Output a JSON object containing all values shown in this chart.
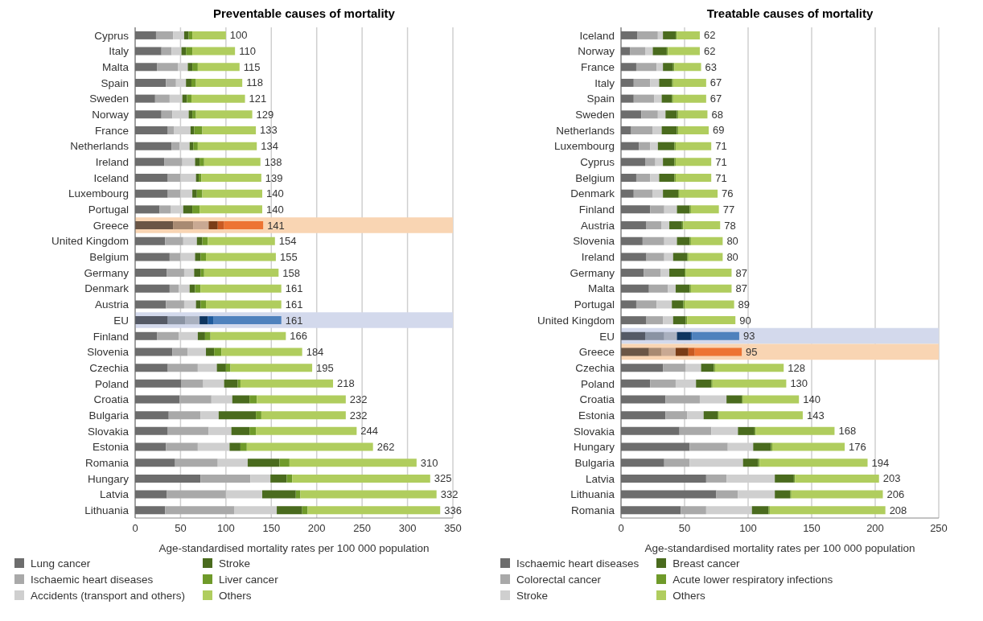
{
  "chart_data": [
    {
      "type": "bar",
      "orientation": "horizontal",
      "stacked": true,
      "title": "Preventable causes of mortality",
      "xlabel": "Age-standardised mortality rates per 100 000 population",
      "categories": [
        "Cyprus",
        "Italy",
        "Malta",
        "Spain",
        "Sweden",
        "Norway",
        "France",
        "Netherlands",
        "Ireland",
        "Iceland",
        "Luxembourg",
        "Portugal",
        "Greece",
        "United Kingdom",
        "Belgium",
        "Germany",
        "Denmark",
        "Austria",
        "EU",
        "Finland",
        "Slovenia",
        "Czechia",
        "Poland",
        "Croatia",
        "Bulgaria",
        "Slovakia",
        "Estonia",
        "Romania",
        "Hungary",
        "Latvia",
        "Lithuania"
      ],
      "series": [
        {
          "name": "Lung cancer",
          "color": "#6d6d6d",
          "values": [
            23,
            29,
            24,
            34,
            22,
            29,
            36,
            40,
            32,
            36,
            36,
            27,
            42,
            33,
            38,
            35,
            38,
            34,
            36,
            24,
            41,
            36,
            51,
            49,
            37,
            36,
            34,
            44,
            72,
            35,
            33
          ],
          "colors": [
            "#6d6d6d",
            "#6d6d6d",
            "#6d6d6d",
            "#6d6d6d",
            "#6d6d6d",
            "#6d6d6d",
            "#6d6d6d",
            "#6d6d6d",
            "#6d6d6d",
            "#6d6d6d",
            "#6d6d6d",
            "#6d6d6d",
            "#6b5646",
            "#6d6d6d",
            "#6d6d6d",
            "#6d6d6d",
            "#6d6d6d",
            "#6d6d6d",
            "#555a66",
            "#6d6d6d",
            "#6d6d6d",
            "#6d6d6d",
            "#6d6d6d",
            "#6d6d6d",
            "#6d6d6d",
            "#6d6d6d",
            "#6d6d6d",
            "#6d6d6d",
            "#6d6d6d",
            "#6d6d6d",
            "#6d6d6d"
          ]
        },
        {
          "name": "Ischaemic heart diseases",
          "color": "#a9a9a9",
          "values": [
            19,
            11,
            23,
            11,
            16,
            12,
            7,
            9,
            20,
            14,
            14,
            12,
            22,
            20,
            12,
            19,
            10,
            20,
            19,
            24,
            17,
            33,
            24,
            35,
            35,
            45,
            35,
            47,
            55,
            65,
            76
          ],
          "colors": [
            "#a9a9a9",
            "#a9a9a9",
            "#a9a9a9",
            "#a9a9a9",
            "#a9a9a9",
            "#a9a9a9",
            "#a9a9a9",
            "#a9a9a9",
            "#a9a9a9",
            "#a9a9a9",
            "#a9a9a9",
            "#a9a9a9",
            "#a88a72",
            "#a9a9a9",
            "#a9a9a9",
            "#a9a9a9",
            "#a9a9a9",
            "#a9a9a9",
            "#8a93a3",
            "#a9a9a9",
            "#a9a9a9",
            "#a9a9a9",
            "#a9a9a9",
            "#a9a9a9",
            "#a9a9a9",
            "#a9a9a9",
            "#a9a9a9",
            "#a9a9a9",
            "#a9a9a9",
            "#a9a9a9",
            "#a9a9a9"
          ]
        },
        {
          "name": "Accidents (transport and others)",
          "color": "#cfcfcf",
          "values": [
            12,
            11,
            11,
            11,
            14,
            18,
            18,
            11,
            14,
            17,
            13,
            14,
            17,
            15,
            16,
            11,
            12,
            13,
            16,
            21,
            20,
            21,
            23,
            23,
            20,
            25,
            35,
            33,
            22,
            40,
            47
          ],
          "colors": [
            "#cfcfcf",
            "#cfcfcf",
            "#cfcfcf",
            "#cfcfcf",
            "#cfcfcf",
            "#cfcfcf",
            "#cfcfcf",
            "#cfcfcf",
            "#cfcfcf",
            "#cfcfcf",
            "#cfcfcf",
            "#cfcfcf",
            "#c9a993",
            "#cfcfcf",
            "#cfcfcf",
            "#cfcfcf",
            "#cfcfcf",
            "#cfcfcf",
            "#a9b0bf",
            "#cfcfcf",
            "#cfcfcf",
            "#cfcfcf",
            "#cfcfcf",
            "#cfcfcf",
            "#cfcfcf",
            "#cfcfcf",
            "#cfcfcf",
            "#cfcfcf",
            "#cfcfcf",
            "#cfcfcf",
            "#cfcfcf"
          ]
        },
        {
          "name": "Stroke",
          "color": "#4a6b1e",
          "values": [
            5,
            5,
            5,
            6,
            5,
            4,
            4,
            4,
            5,
            3,
            5,
            10,
            10,
            6,
            6,
            7,
            6,
            5,
            9,
            8,
            9,
            10,
            15,
            19,
            41,
            20,
            12,
            35,
            18,
            37,
            28
          ],
          "colors": [
            "#4a6b1e",
            "#4a6b1e",
            "#4a6b1e",
            "#4a6b1e",
            "#4a6b1e",
            "#4a6b1e",
            "#4a6b1e",
            "#4a6b1e",
            "#4a6b1e",
            "#4a6b1e",
            "#4a6b1e",
            "#4a6b1e",
            "#7a3d17",
            "#4a6b1e",
            "#4a6b1e",
            "#4a6b1e",
            "#4a6b1e",
            "#4a6b1e",
            "#0e3560",
            "#4a6b1e",
            "#4a6b1e",
            "#4a6b1e",
            "#4a6b1e",
            "#4a6b1e",
            "#4a6b1e",
            "#4a6b1e",
            "#4a6b1e",
            "#4a6b1e",
            "#4a6b1e",
            "#4a6b1e",
            "#4a6b1e"
          ]
        },
        {
          "name": "Liver cancer",
          "color": "#6f9a2a",
          "values": [
            4,
            7,
            6,
            5,
            5,
            4,
            9,
            5,
            5,
            3,
            6,
            8,
            7,
            6,
            6,
            4,
            6,
            6,
            6,
            6,
            8,
            5,
            3,
            8,
            6,
            7,
            7,
            11,
            6,
            5,
            6
          ],
          "colors": [
            "#6f9a2a",
            "#6f9a2a",
            "#6f9a2a",
            "#6f9a2a",
            "#6f9a2a",
            "#6f9a2a",
            "#6f9a2a",
            "#6f9a2a",
            "#6f9a2a",
            "#6f9a2a",
            "#6f9a2a",
            "#6f9a2a",
            "#c85a22",
            "#6f9a2a",
            "#6f9a2a",
            "#6f9a2a",
            "#6f9a2a",
            "#6f9a2a",
            "#1f5a9c",
            "#6f9a2a",
            "#6f9a2a",
            "#6f9a2a",
            "#6f9a2a",
            "#6f9a2a",
            "#6f9a2a",
            "#6f9a2a",
            "#6f9a2a",
            "#6f9a2a",
            "#6f9a2a",
            "#6f9a2a",
            "#6f9a2a"
          ]
        },
        {
          "name": "Others",
          "color": "#b0cd5e",
          "values": [
            37,
            47,
            46,
            51,
            59,
            62,
            59,
            65,
            62,
            66,
            66,
            69,
            43,
            74,
            77,
            82,
            89,
            83,
            75,
            83,
            89,
            90,
            102,
            98,
            93,
            111,
            139,
            140,
            152,
            150,
            146
          ],
          "colors": [
            "#b0cd5e",
            "#b0cd5e",
            "#b0cd5e",
            "#b0cd5e",
            "#b0cd5e",
            "#b0cd5e",
            "#b0cd5e",
            "#b0cd5e",
            "#b0cd5e",
            "#b0cd5e",
            "#b0cd5e",
            "#b0cd5e",
            "#ed7433",
            "#b0cd5e",
            "#b0cd5e",
            "#b0cd5e",
            "#b0cd5e",
            "#b0cd5e",
            "#4f81bd",
            "#b0cd5e",
            "#b0cd5e",
            "#b0cd5e",
            "#b0cd5e",
            "#b0cd5e",
            "#b0cd5e",
            "#b0cd5e",
            "#b0cd5e",
            "#b0cd5e",
            "#b0cd5e",
            "#b0cd5e",
            "#b0cd5e"
          ]
        }
      ],
      "totals": [
        "100",
        "110",
        "115",
        "118",
        "121",
        "129",
        "133",
        "134",
        "138",
        "139",
        "140",
        "140",
        "141",
        "154",
        "155",
        "158",
        "161",
        "161",
        "161",
        "166",
        "184",
        "195",
        "218",
        "232",
        "232",
        "244",
        "262",
        "310",
        "325",
        "332",
        "336"
      ],
      "xlim": [
        0,
        350
      ],
      "xticks": [
        0,
        50,
        100,
        150,
        200,
        250,
        300,
        350
      ],
      "grid": "x",
      "legend": "bottom",
      "bands": [
        {
          "axis": "y",
          "from": "Greece",
          "to": "Greece",
          "color": "#f9d5b3"
        },
        {
          "axis": "y",
          "from": "EU",
          "to": "EU",
          "color": "#d3d9ec"
        }
      ]
    },
    {
      "type": "bar",
      "orientation": "horizontal",
      "stacked": true,
      "title": "Treatable causes of mortality",
      "xlabel": "Age-standardised mortality rates per 100 000 population",
      "categories": [
        "Iceland",
        "Norway",
        "France",
        "Italy",
        "Spain",
        "Sweden",
        "Netherlands",
        "Luxembourg",
        "Cyprus",
        "Belgium",
        "Denmark",
        "Finland",
        "Austria",
        "Slovenia",
        "Ireland",
        "Germany",
        "Malta",
        "Portugal",
        "United Kingdom",
        "EU",
        "Greece",
        "Czechia",
        "Poland",
        "Croatia",
        "Estonia",
        "Slovakia",
        "Hungary",
        "Bulgaria",
        "Latvia",
        "Lithuania",
        "Romania"
      ],
      "series": [
        {
          "name": "Ischaemic heart diseases",
          "color": "#6d6d6d",
          "values": [
            13,
            7,
            12,
            10,
            10,
            16,
            8,
            14,
            19,
            12,
            10,
            23,
            20,
            17,
            20,
            18,
            22,
            12,
            20,
            19,
            22,
            33,
            23,
            35,
            35,
            46,
            54,
            34,
            67,
            75,
            47
          ],
          "colors": [
            "#6d6d6d",
            "#6d6d6d",
            "#6d6d6d",
            "#6d6d6d",
            "#6d6d6d",
            "#6d6d6d",
            "#6d6d6d",
            "#6d6d6d",
            "#6d6d6d",
            "#6d6d6d",
            "#6d6d6d",
            "#6d6d6d",
            "#6d6d6d",
            "#6d6d6d",
            "#6d6d6d",
            "#6d6d6d",
            "#6d6d6d",
            "#6d6d6d",
            "#6d6d6d",
            "#555a66",
            "#6b5646",
            "#6d6d6d",
            "#6d6d6d",
            "#6d6d6d",
            "#6d6d6d",
            "#6d6d6d",
            "#6d6d6d",
            "#6d6d6d",
            "#6d6d6d",
            "#6d6d6d",
            "#6d6d6d"
          ]
        },
        {
          "name": "Colorectal cancer",
          "color": "#a9a9a9",
          "values": [
            16,
            12,
            16,
            13,
            16,
            13,
            17,
            9,
            8,
            11,
            15,
            11,
            12,
            17,
            14,
            13,
            15,
            16,
            13,
            15,
            10,
            18,
            20,
            27,
            17,
            25,
            30,
            20,
            16,
            17,
            20
          ],
          "colors": [
            "#a9a9a9",
            "#a9a9a9",
            "#a9a9a9",
            "#a9a9a9",
            "#a9a9a9",
            "#a9a9a9",
            "#a9a9a9",
            "#a9a9a9",
            "#a9a9a9",
            "#a9a9a9",
            "#a9a9a9",
            "#a9a9a9",
            "#a9a9a9",
            "#a9a9a9",
            "#a9a9a9",
            "#a9a9a9",
            "#a9a9a9",
            "#a9a9a9",
            "#a9a9a9",
            "#8a93a3",
            "#a88a72",
            "#a9a9a9",
            "#a9a9a9",
            "#a9a9a9",
            "#a9a9a9",
            "#a9a9a9",
            "#a9a9a9",
            "#a9a9a9",
            "#a9a9a9",
            "#a9a9a9",
            "#a9a9a9"
          ]
        },
        {
          "name": "Stroke",
          "color": "#cfcfcf",
          "values": [
            4,
            6,
            5,
            7,
            6,
            6,
            7,
            6,
            6,
            7,
            8,
            10,
            6,
            10,
            7,
            7,
            6,
            12,
            8,
            10,
            11,
            12,
            16,
            21,
            13,
            21,
            20,
            42,
            38,
            29,
            36
          ],
          "colors": [
            "#cfcfcf",
            "#cfcfcf",
            "#cfcfcf",
            "#cfcfcf",
            "#cfcfcf",
            "#cfcfcf",
            "#cfcfcf",
            "#cfcfcf",
            "#cfcfcf",
            "#cfcfcf",
            "#cfcfcf",
            "#cfcfcf",
            "#cfcfcf",
            "#cfcfcf",
            "#cfcfcf",
            "#cfcfcf",
            "#cfcfcf",
            "#cfcfcf",
            "#cfcfcf",
            "#a9b0bf",
            "#c9a993",
            "#cfcfcf",
            "#cfcfcf",
            "#cfcfcf",
            "#cfcfcf",
            "#cfcfcf",
            "#cfcfcf",
            "#cfcfcf",
            "#cfcfcf",
            "#cfcfcf",
            "#cfcfcf"
          ]
        },
        {
          "name": "Breast cancer",
          "color": "#4a6b1e",
          "values": [
            10,
            11,
            8,
            10,
            8,
            9,
            12,
            13,
            9,
            12,
            12,
            10,
            10,
            10,
            11,
            12,
            11,
            9,
            10,
            11,
            10,
            10,
            12,
            12,
            11,
            13,
            14,
            12,
            15,
            12,
            13
          ],
          "colors": [
            "#4a6b1e",
            "#4a6b1e",
            "#4a6b1e",
            "#4a6b1e",
            "#4a6b1e",
            "#4a6b1e",
            "#4a6b1e",
            "#4a6b1e",
            "#4a6b1e",
            "#4a6b1e",
            "#4a6b1e",
            "#4a6b1e",
            "#4a6b1e",
            "#4a6b1e",
            "#4a6b1e",
            "#4a6b1e",
            "#4a6b1e",
            "#4a6b1e",
            "#4a6b1e",
            "#0e3560",
            "#7a3d17",
            "#4a6b1e",
            "#4a6b1e",
            "#4a6b1e",
            "#4a6b1e",
            "#4a6b1e",
            "#4a6b1e",
            "#4a6b1e",
            "#4a6b1e",
            "#4a6b1e",
            "#4a6b1e"
          ]
        },
        {
          "name": "Acute lower respiratory infections",
          "color": "#6f9a2a",
          "values": [
            1,
            1,
            1,
            1,
            1,
            1,
            1,
            1,
            1,
            1,
            1,
            1,
            1,
            1,
            1,
            1,
            1,
            1,
            1,
            1,
            5,
            1,
            1,
            1,
            1,
            1,
            1,
            1,
            1,
            1,
            1
          ],
          "colors": [
            "#6f9a2a",
            "#6f9a2a",
            "#6f9a2a",
            "#6f9a2a",
            "#6f9a2a",
            "#6f9a2a",
            "#6f9a2a",
            "#6f9a2a",
            "#6f9a2a",
            "#6f9a2a",
            "#6f9a2a",
            "#6f9a2a",
            "#6f9a2a",
            "#6f9a2a",
            "#6f9a2a",
            "#6f9a2a",
            "#6f9a2a",
            "#6f9a2a",
            "#6f9a2a",
            "#1f5a9c",
            "#c85a22",
            "#6f9a2a",
            "#6f9a2a",
            "#6f9a2a",
            "#6f9a2a",
            "#6f9a2a",
            "#6f9a2a",
            "#6f9a2a",
            "#6f9a2a",
            "#6f9a2a",
            "#6f9a2a"
          ]
        },
        {
          "name": "Others",
          "color": "#b0cd5e",
          "values": [
            18,
            25,
            21,
            26,
            26,
            23,
            24,
            28,
            28,
            28,
            30,
            22,
            29,
            25,
            27,
            36,
            32,
            39,
            38,
            37,
            37,
            54,
            58,
            44,
            66,
            62,
            57,
            85,
            66,
            72,
            91
          ],
          "colors": [
            "#b0cd5e",
            "#b0cd5e",
            "#b0cd5e",
            "#b0cd5e",
            "#b0cd5e",
            "#b0cd5e",
            "#b0cd5e",
            "#b0cd5e",
            "#b0cd5e",
            "#b0cd5e",
            "#b0cd5e",
            "#b0cd5e",
            "#b0cd5e",
            "#b0cd5e",
            "#b0cd5e",
            "#b0cd5e",
            "#b0cd5e",
            "#b0cd5e",
            "#b0cd5e",
            "#4f81bd",
            "#ed7433",
            "#b0cd5e",
            "#b0cd5e",
            "#b0cd5e",
            "#b0cd5e",
            "#b0cd5e",
            "#b0cd5e",
            "#b0cd5e",
            "#b0cd5e",
            "#b0cd5e",
            "#b0cd5e"
          ]
        }
      ],
      "totals": [
        "62",
        "62",
        "63",
        "67",
        "67",
        "68",
        "69",
        "71",
        "71",
        "71",
        "76",
        "77",
        "78",
        "80",
        "80",
        "87",
        "87",
        "89",
        "90",
        "93",
        "95",
        "128",
        "130",
        "140",
        "143",
        "168",
        "176",
        "194",
        "203",
        "206",
        "208"
      ],
      "xlim": [
        0,
        250
      ],
      "xticks": [
        0,
        50,
        100,
        150,
        200,
        250
      ],
      "grid": "x",
      "legend": "bottom",
      "bands": [
        {
          "axis": "y",
          "from": "EU",
          "to": "EU",
          "color": "#d3d9ec"
        },
        {
          "axis": "y",
          "from": "Greece",
          "to": "Greece",
          "color": "#f9d5b3"
        }
      ]
    }
  ]
}
